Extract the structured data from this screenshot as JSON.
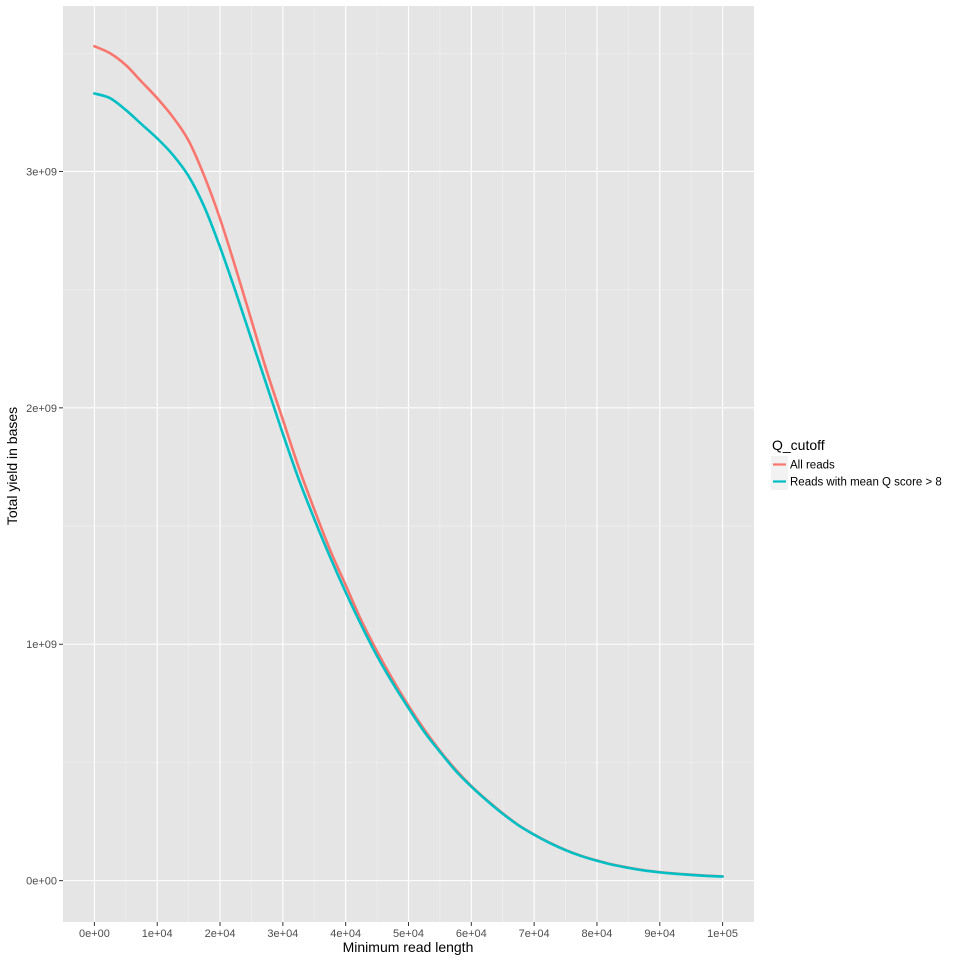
{
  "chart_data": {
    "type": "line",
    "title": "",
    "xlabel": "Minimum read length",
    "ylabel": "Total yield in bases",
    "xlim": [
      -5000,
      105000
    ],
    "ylim": [
      -175000000,
      3700000000
    ],
    "x_ticks": [
      0,
      10000,
      20000,
      30000,
      40000,
      50000,
      60000,
      70000,
      80000,
      90000,
      100000
    ],
    "x_tick_labels": [
      "0e+00",
      "1e+04",
      "2e+04",
      "3e+04",
      "4e+04",
      "5e+04",
      "6e+04",
      "7e+04",
      "8e+04",
      "9e+04",
      "1e+05"
    ],
    "y_ticks": [
      0,
      1000000000,
      2000000000,
      3000000000
    ],
    "y_tick_labels": [
      "0e+00",
      "1e+09",
      "2e+09",
      "3e+09"
    ],
    "grid": true,
    "legend": {
      "title": "Q_cutoff",
      "position": "right"
    },
    "series": [
      {
        "name": "All reads",
        "color": "#F8766D",
        "x": [
          0,
          2500,
          5000,
          7500,
          10000,
          12500,
          15000,
          17500,
          20000,
          22500,
          25000,
          27500,
          30000,
          32500,
          35000,
          37500,
          40000,
          42500,
          45000,
          47500,
          50000,
          52500,
          55000,
          57500,
          60000,
          62500,
          65000,
          67500,
          70000,
          72500,
          75000,
          77500,
          80000,
          82500,
          85000,
          87500,
          90000,
          92500,
          95000,
          97500,
          100000
        ],
        "y": [
          3530000000,
          3500000000,
          3450000000,
          3380000000,
          3310000000,
          3230000000,
          3130000000,
          2980000000,
          2800000000,
          2590000000,
          2370000000,
          2150000000,
          1950000000,
          1750000000,
          1570000000,
          1400000000,
          1250000000,
          1100000000,
          970000000,
          850000000,
          740000000,
          640000000,
          550000000,
          470000000,
          400000000,
          340000000,
          285000000,
          235000000,
          195000000,
          160000000,
          130000000,
          105000000,
          85000000,
          68000000,
          55000000,
          44000000,
          36000000,
          30000000,
          25000000,
          21000000,
          18000000
        ]
      },
      {
        "name": "Reads with mean Q score > 8",
        "color": "#00BFC4",
        "x": [
          0,
          2500,
          5000,
          7500,
          10000,
          12500,
          15000,
          17500,
          20000,
          22500,
          25000,
          27500,
          30000,
          32500,
          35000,
          37500,
          40000,
          42500,
          45000,
          47500,
          50000,
          52500,
          55000,
          57500,
          60000,
          62500,
          65000,
          67500,
          70000,
          72500,
          75000,
          77500,
          80000,
          82500,
          85000,
          87500,
          90000,
          92500,
          95000,
          97500,
          100000
        ],
        "y": [
          3330000000,
          3310000000,
          3260000000,
          3200000000,
          3140000000,
          3070000000,
          2980000000,
          2850000000,
          2680000000,
          2490000000,
          2290000000,
          2090000000,
          1890000000,
          1700000000,
          1530000000,
          1370000000,
          1220000000,
          1080000000,
          950000000,
          835000000,
          730000000,
          630000000,
          545000000,
          465000000,
          398000000,
          338000000,
          283000000,
          234000000,
          194000000,
          159000000,
          129000000,
          104000000,
          84000000,
          67000000,
          54000000,
          43000000,
          35000000,
          29000000,
          24000000,
          20000000,
          17000000
        ]
      }
    ]
  },
  "colors": {
    "panel_background": "#E5E5E5",
    "grid_major": "#FFFFFF",
    "grid_minor": "#F0F0F0",
    "legend_key_background": "#F2F2F2"
  }
}
